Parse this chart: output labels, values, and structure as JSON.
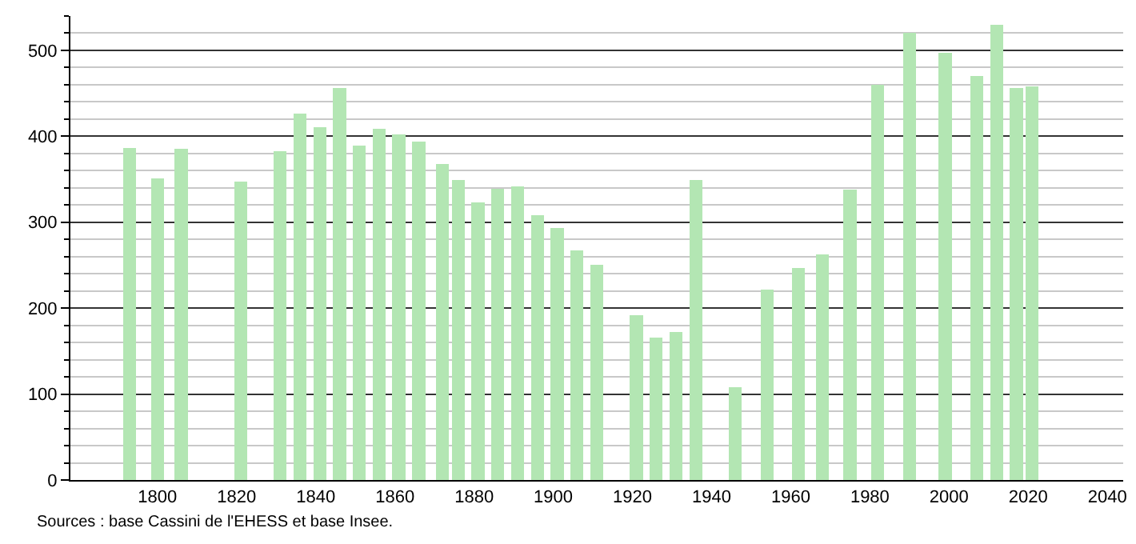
{
  "chart_data": {
    "type": "bar",
    "x": [
      1793,
      1800,
      1806,
      1821,
      1831,
      1836,
      1841,
      1846,
      1851,
      1856,
      1861,
      1866,
      1872,
      1876,
      1881,
      1886,
      1891,
      1896,
      1901,
      1906,
      1911,
      1921,
      1926,
      1931,
      1936,
      1946,
      1954,
      1962,
      1968,
      1975,
      1982,
      1990,
      1999,
      2007,
      2012,
      2017,
      2021
    ],
    "values": [
      386,
      351,
      385,
      347,
      383,
      426,
      411,
      456,
      389,
      409,
      402,
      394,
      368,
      349,
      323,
      339,
      342,
      308,
      293,
      267,
      250,
      192,
      166,
      172,
      349,
      108,
      222,
      247,
      263,
      338,
      460,
      520,
      497,
      470,
      530,
      456,
      458
    ],
    "color": "#b3e6b3",
    "xlim": [
      1778,
      2044
    ],
    "xticks": [
      1800,
      1820,
      1840,
      1860,
      1880,
      1900,
      1920,
      1940,
      1960,
      1980,
      2000,
      2020,
      2040
    ],
    "ylim": [
      0,
      540
    ],
    "yticks": [
      0,
      100,
      200,
      300,
      400,
      500
    ],
    "grid": "y",
    "annotations": [
      "Sources : base Cassini de l'EHESS et base Insee."
    ]
  }
}
